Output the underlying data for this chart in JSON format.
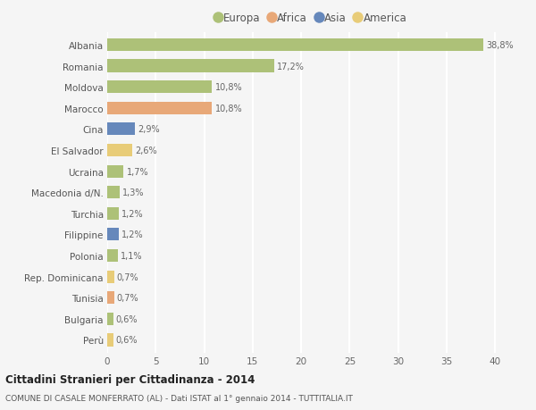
{
  "countries": [
    "Albania",
    "Romania",
    "Moldova",
    "Marocco",
    "Cina",
    "El Salvador",
    "Ucraina",
    "Macedonia d/N.",
    "Turchia",
    "Filippine",
    "Polonia",
    "Rep. Dominicana",
    "Tunisia",
    "Bulgaria",
    "Perù"
  ],
  "values": [
    38.8,
    17.2,
    10.8,
    10.8,
    2.9,
    2.6,
    1.7,
    1.3,
    1.2,
    1.2,
    1.1,
    0.7,
    0.7,
    0.6,
    0.6
  ],
  "labels": [
    "38,8%",
    "17,2%",
    "10,8%",
    "10,8%",
    "2,9%",
    "2,6%",
    "1,7%",
    "1,3%",
    "1,2%",
    "1,2%",
    "1,1%",
    "0,7%",
    "0,7%",
    "0,6%",
    "0,6%"
  ],
  "continents": [
    "Europa",
    "Europa",
    "Europa",
    "Africa",
    "Asia",
    "America",
    "Europa",
    "Europa",
    "Europa",
    "Asia",
    "Europa",
    "America",
    "Africa",
    "Europa",
    "America"
  ],
  "colors": {
    "Europa": "#adc178",
    "Africa": "#e8a878",
    "Asia": "#6688bb",
    "America": "#e8cc78"
  },
  "title1": "Cittadini Stranieri per Cittadinanza - 2014",
  "title2": "COMUNE DI CASALE MONFERRATO (AL) - Dati ISTAT al 1° gennaio 2014 - TUTTITALIA.IT",
  "xlim": [
    0,
    42
  ],
  "xticks": [
    0,
    5,
    10,
    15,
    20,
    25,
    30,
    35,
    40
  ],
  "background_color": "#f5f5f5",
  "grid_color": "#ffffff",
  "bar_height": 0.6
}
